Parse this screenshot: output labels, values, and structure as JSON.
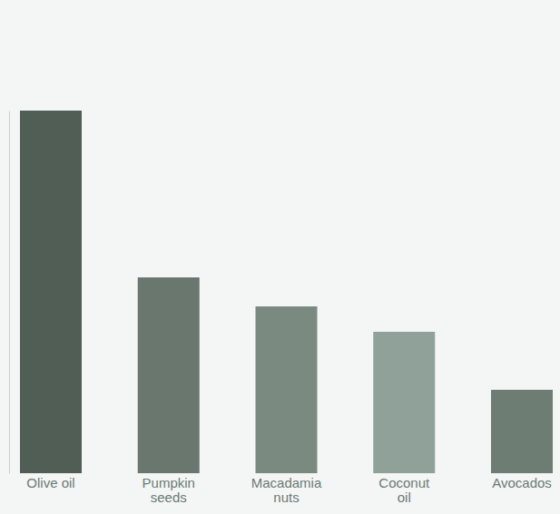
{
  "chart_data": {
    "type": "bar",
    "categories": [
      "Olive oil",
      "Pumpkin seeds",
      "Macadamia nuts",
      "Coconut oil",
      "Avocados"
    ],
    "values": [
      100,
      54,
      46,
      39,
      23
    ],
    "colors": [
      "#515e56",
      "#6a776f",
      "#7a8a81",
      "#8fa198",
      "#6e7d74"
    ],
    "ylim": [
      0,
      100
    ],
    "yticks": [],
    "tick_labels": "x"
  }
}
